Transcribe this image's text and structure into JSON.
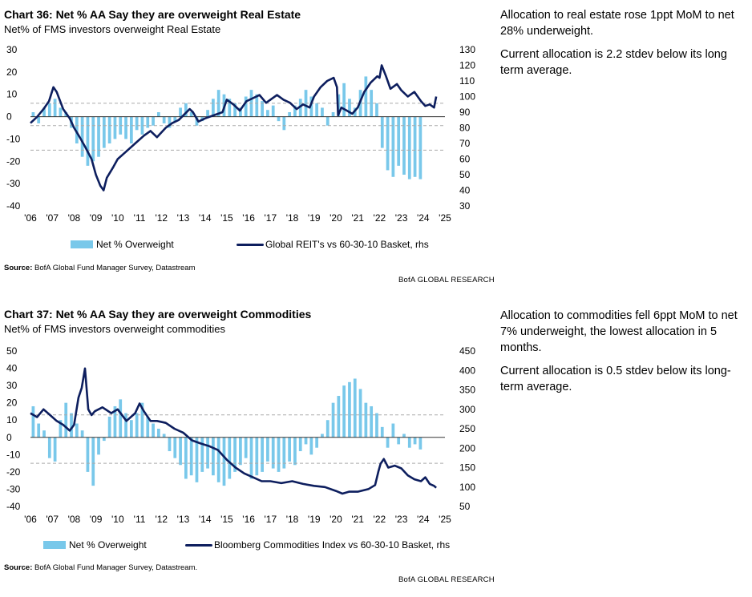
{
  "charts": [
    {
      "title": "Chart 36: Net % AA Say they are overweight Real Estate",
      "subtitle": "Net% of FMS investors overweight Real Estate",
      "legend_bar": "Net % Overweight",
      "legend_line": "Global REIT's vs 60-30-10 Basket, rhs",
      "source_label": "Source:",
      "source_text": "BofA Global Fund Manager Survey, Datastream",
      "brand": "BofA GLOBAL RESEARCH",
      "commentary": [
        "Allocation to real estate rose 1ppt MoM to net 28% underweight.",
        "Current allocation is 2.2 stdev below its long term average."
      ]
    },
    {
      "title": "Chart 37: Net % AA Say they are overweight Commodities",
      "subtitle": "Net% of FMS investors overweight commodities",
      "legend_bar": "Net % Overweight",
      "legend_line": "Bloomberg Commodities Index vs 60-30-10 Basket, rhs",
      "source_label": "Source:",
      "source_text": "BofA Global Fund Manager Survey, Datastream.",
      "brand": "BofA GLOBAL RESEARCH",
      "commentary": [
        "Allocation to commodities fell 6ppt MoM to net 7% underweight, the lowest allocation in 5 months.",
        "Current allocation is 0.5 stdev below its long-term average."
      ]
    }
  ],
  "chart_data": [
    {
      "type": "bar",
      "combo": "bar + line on secondary axis",
      "x_tick_labels": [
        "'06",
        "'07",
        "'08",
        "'09",
        "'10",
        "'11",
        "'12",
        "'13",
        "'14",
        "'15",
        "'16",
        "'17",
        "'18",
        "'19",
        "'20",
        "'21",
        "'22",
        "'23",
        "'24",
        "'25"
      ],
      "x_range": [
        2006.0,
        2025.0
      ],
      "left_axis": {
        "ticks": [
          30,
          20,
          10,
          0,
          -10,
          -20,
          -30,
          -40
        ],
        "ylim": [
          -40,
          30
        ]
      },
      "right_axis": {
        "ticks": [
          130,
          120,
          110,
          100,
          90,
          80,
          70,
          60,
          50,
          40,
          30
        ],
        "ylim": [
          30,
          130
        ]
      },
      "reference_lines": [
        6,
        -4,
        -15
      ],
      "colors": {
        "bars": "#79c8ea",
        "line": "#0d1e5e",
        "reference": "#aaaaaa"
      },
      "bar_series": {
        "name": "Net % Overweight",
        "values_by_quarter_from_2006": [
          2,
          -3,
          4,
          6,
          8,
          4,
          2,
          -5,
          -12,
          -18,
          -22,
          -20,
          -18,
          -14,
          -12,
          -10,
          -8,
          -10,
          -12,
          -6,
          -8,
          -5,
          -4,
          2,
          -3,
          -5,
          -2,
          4,
          6,
          2,
          -4,
          -2,
          3,
          8,
          12,
          10,
          8,
          6,
          4,
          9,
          12,
          10,
          7,
          3,
          5,
          -2,
          -6,
          2,
          5,
          8,
          12,
          9,
          6,
          4,
          -4,
          2,
          10,
          15,
          8,
          4,
          12,
          18,
          12,
          6,
          -14,
          -24,
          -27,
          -22,
          -26,
          -28,
          -27,
          -28
        ]
      },
      "line_series": {
        "name": "Global REIT's vs 60-30-10 Basket, rhs",
        "points": [
          [
            2006.0,
            83
          ],
          [
            2006.3,
            87
          ],
          [
            2006.6,
            92
          ],
          [
            2006.85,
            97
          ],
          [
            2007.05,
            106
          ],
          [
            2007.2,
            103
          ],
          [
            2007.5,
            92
          ],
          [
            2007.8,
            86
          ],
          [
            2008.0,
            80
          ],
          [
            2008.3,
            73
          ],
          [
            2008.5,
            68
          ],
          [
            2008.8,
            60
          ],
          [
            2009.0,
            50
          ],
          [
            2009.2,
            43
          ],
          [
            2009.35,
            40
          ],
          [
            2009.5,
            48
          ],
          [
            2009.8,
            55
          ],
          [
            2010.0,
            60
          ],
          [
            2010.4,
            65
          ],
          [
            2010.8,
            70
          ],
          [
            2011.2,
            75
          ],
          [
            2011.5,
            78
          ],
          [
            2011.8,
            74
          ],
          [
            2012.2,
            80
          ],
          [
            2012.5,
            83
          ],
          [
            2012.8,
            85
          ],
          [
            2013.3,
            92
          ],
          [
            2013.45,
            90
          ],
          [
            2013.7,
            84
          ],
          [
            2014.0,
            86
          ],
          [
            2014.4,
            88
          ],
          [
            2014.8,
            90
          ],
          [
            2015.0,
            98
          ],
          [
            2015.3,
            95
          ],
          [
            2015.6,
            91
          ],
          [
            2015.9,
            97
          ],
          [
            2016.2,
            99
          ],
          [
            2016.5,
            101
          ],
          [
            2016.8,
            96
          ],
          [
            2017.0,
            98
          ],
          [
            2017.3,
            101
          ],
          [
            2017.6,
            98
          ],
          [
            2017.9,
            96
          ],
          [
            2018.2,
            92
          ],
          [
            2018.5,
            95
          ],
          [
            2018.8,
            93
          ],
          [
            2019.0,
            100
          ],
          [
            2019.3,
            106
          ],
          [
            2019.6,
            110
          ],
          [
            2019.9,
            112
          ],
          [
            2020.05,
            106
          ],
          [
            2020.1,
            88
          ],
          [
            2020.25,
            93
          ],
          [
            2020.5,
            91
          ],
          [
            2020.75,
            89
          ],
          [
            2021.0,
            93
          ],
          [
            2021.3,
            103
          ],
          [
            2021.6,
            109
          ],
          [
            2021.9,
            113
          ],
          [
            2022.0,
            112
          ],
          [
            2022.1,
            120
          ],
          [
            2022.3,
            113
          ],
          [
            2022.5,
            105
          ],
          [
            2022.8,
            108
          ],
          [
            2023.0,
            104
          ],
          [
            2023.3,
            100
          ],
          [
            2023.6,
            103
          ],
          [
            2023.9,
            97
          ],
          [
            2024.1,
            94
          ],
          [
            2024.3,
            95
          ],
          [
            2024.5,
            93
          ],
          [
            2024.6,
            100
          ]
        ]
      }
    },
    {
      "type": "bar",
      "combo": "bar + line on secondary axis",
      "x_tick_labels": [
        "'06",
        "'07",
        "'08",
        "'09",
        "'10",
        "'11",
        "'12",
        "'13",
        "'14",
        "'15",
        "'16",
        "'17",
        "'18",
        "'19",
        "'20",
        "'21",
        "'22",
        "'23",
        "'24",
        "'25"
      ],
      "x_range": [
        2006.0,
        2025.0
      ],
      "left_axis": {
        "ticks": [
          50,
          40,
          30,
          20,
          10,
          0,
          -10,
          -20,
          -30,
          -40
        ],
        "ylim": [
          -40,
          50
        ]
      },
      "right_axis": {
        "ticks": [
          450,
          400,
          350,
          300,
          250,
          200,
          150,
          100,
          50
        ],
        "ylim": [
          50,
          450
        ]
      },
      "reference_lines": [
        13,
        -15
      ],
      "colors": {
        "bars": "#79c8ea",
        "line": "#0d1e5e",
        "reference": "#aaaaaa"
      },
      "bar_series": {
        "name": "Net % Overweight",
        "values_by_quarter_from_2006": [
          18,
          8,
          4,
          -12,
          -14,
          10,
          20,
          14,
          8,
          4,
          -20,
          -28,
          -10,
          -2,
          12,
          18,
          22,
          14,
          10,
          14,
          20,
          12,
          8,
          5,
          2,
          -8,
          -12,
          -16,
          -24,
          -22,
          -26,
          -20,
          -18,
          -22,
          -26,
          -28,
          -24,
          -20,
          -16,
          -12,
          -24,
          -22,
          -20,
          -14,
          -18,
          -20,
          -18,
          -14,
          -16,
          -8,
          -4,
          -10,
          -6,
          2,
          10,
          20,
          24,
          30,
          32,
          34,
          28,
          20,
          18,
          14,
          6,
          -6,
          8,
          -4,
          2,
          -6,
          -4,
          -7
        ]
      },
      "line_series": {
        "name": "Bloomberg Commodities Index vs 60-30-10 Basket, rhs",
        "points": [
          [
            2006.0,
            290
          ],
          [
            2006.3,
            280
          ],
          [
            2006.6,
            300
          ],
          [
            2006.9,
            285
          ],
          [
            2007.2,
            270
          ],
          [
            2007.5,
            260
          ],
          [
            2007.8,
            245
          ],
          [
            2008.0,
            260
          ],
          [
            2008.2,
            330
          ],
          [
            2008.35,
            355
          ],
          [
            2008.5,
            405
          ],
          [
            2008.65,
            300
          ],
          [
            2008.8,
            285
          ],
          [
            2008.95,
            295
          ],
          [
            2009.3,
            305
          ],
          [
            2009.7,
            290
          ],
          [
            2010.0,
            300
          ],
          [
            2010.4,
            270
          ],
          [
            2010.8,
            290
          ],
          [
            2011.0,
            315
          ],
          [
            2011.2,
            295
          ],
          [
            2011.5,
            270
          ],
          [
            2011.8,
            270
          ],
          [
            2012.2,
            265
          ],
          [
            2012.6,
            250
          ],
          [
            2013.0,
            240
          ],
          [
            2013.4,
            220
          ],
          [
            2013.8,
            212
          ],
          [
            2014.2,
            205
          ],
          [
            2014.6,
            195
          ],
          [
            2015.0,
            170
          ],
          [
            2015.4,
            150
          ],
          [
            2015.8,
            135
          ],
          [
            2016.2,
            125
          ],
          [
            2016.6,
            115
          ],
          [
            2017.0,
            115
          ],
          [
            2017.5,
            110
          ],
          [
            2018.0,
            115
          ],
          [
            2018.5,
            108
          ],
          [
            2019.0,
            103
          ],
          [
            2019.5,
            100
          ],
          [
            2020.0,
            90
          ],
          [
            2020.3,
            83
          ],
          [
            2020.6,
            88
          ],
          [
            2021.0,
            88
          ],
          [
            2021.5,
            95
          ],
          [
            2021.8,
            105
          ],
          [
            2021.95,
            140
          ],
          [
            2022.05,
            160
          ],
          [
            2022.2,
            172
          ],
          [
            2022.4,
            150
          ],
          [
            2022.7,
            155
          ],
          [
            2023.0,
            148
          ],
          [
            2023.3,
            130
          ],
          [
            2023.6,
            120
          ],
          [
            2023.9,
            115
          ],
          [
            2024.1,
            125
          ],
          [
            2024.3,
            108
          ],
          [
            2024.5,
            103
          ],
          [
            2024.6,
            98
          ]
        ]
      }
    }
  ]
}
